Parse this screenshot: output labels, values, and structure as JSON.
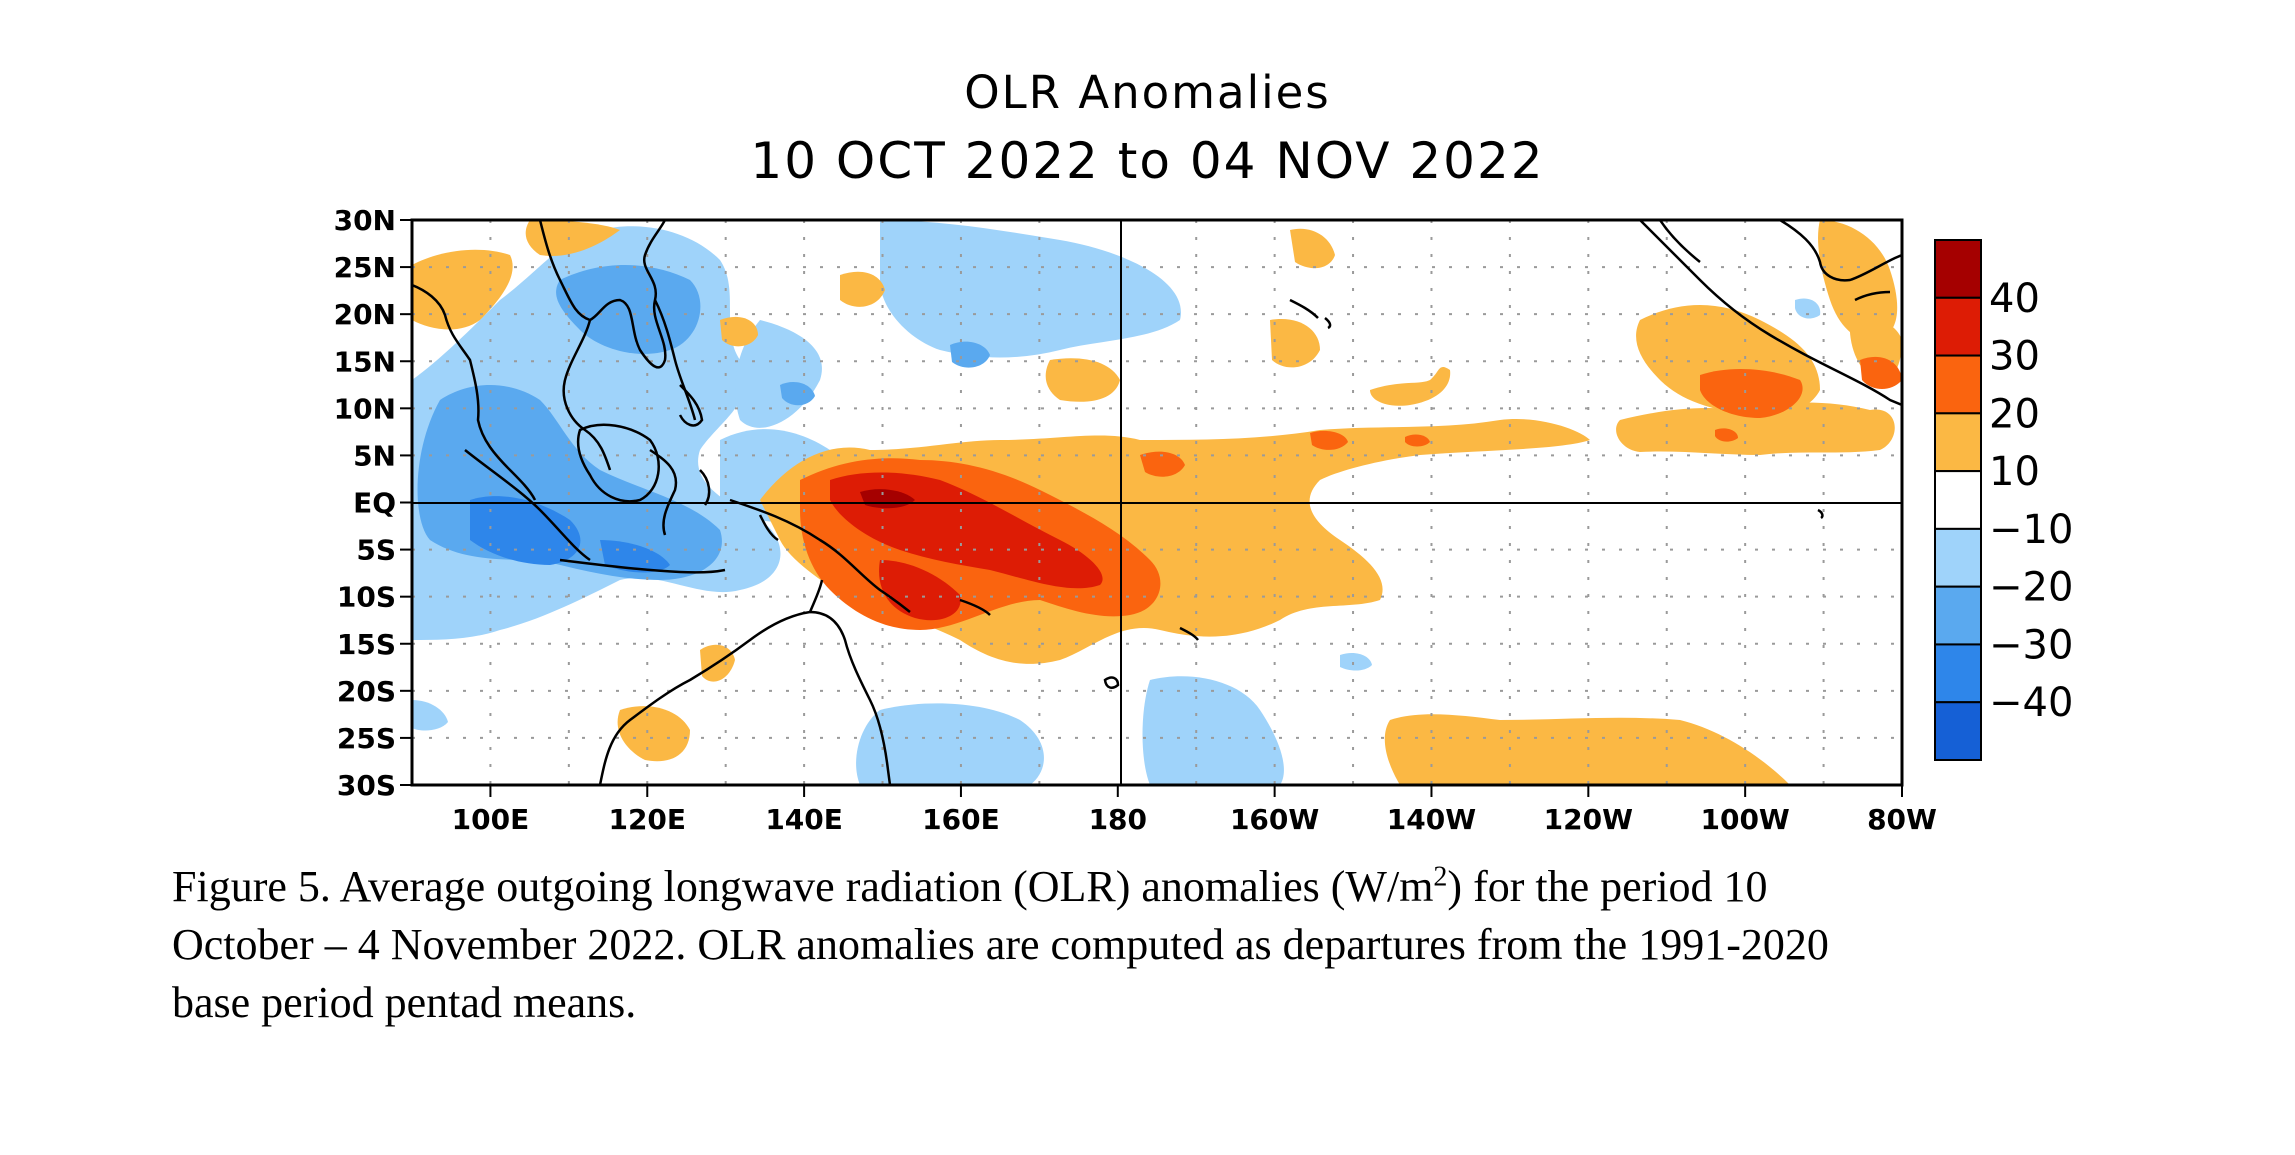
{
  "title": {
    "line1": "OLR Anomalies",
    "line2": "10 OCT 2022 to 04 NOV 2022"
  },
  "map": {
    "type": "map",
    "region": "Tropical Indo-Pacific",
    "lat_range": [
      -30,
      30
    ],
    "lon_range": [
      90,
      280
    ],
    "lat_ticks": [
      "30N",
      "25N",
      "20N",
      "15N",
      "10N",
      "5N",
      "EQ",
      "5S",
      "10S",
      "15S",
      "20S",
      "25S",
      "30S"
    ],
    "lon_ticks": [
      "100E",
      "120E",
      "140E",
      "160E",
      "180",
      "160W",
      "140W",
      "120W",
      "100W",
      "80W"
    ],
    "grid": true,
    "colorbar": {
      "labels": [
        "40",
        "30",
        "20",
        "10",
        "−10",
        "−20",
        "−30",
        "−40"
      ],
      "colors": [
        "#a50000",
        "#dd1c05",
        "#fa640f",
        "#fbb844",
        "#ffffff",
        "#9fd3fa",
        "#5aa9ef",
        "#2e86ea",
        "#1560d6"
      ]
    }
  },
  "caption": {
    "line1_pre": "Figure 5. Average outgoing longwave radiation (OLR) anomalies (W/m",
    "line1_sup": "2",
    "line1_post": ") for the period 10",
    "line2": "October – 4 November 2022.  OLR anomalies are computed as departures from the 1991-2020",
    "line3": "base period pentad means."
  }
}
